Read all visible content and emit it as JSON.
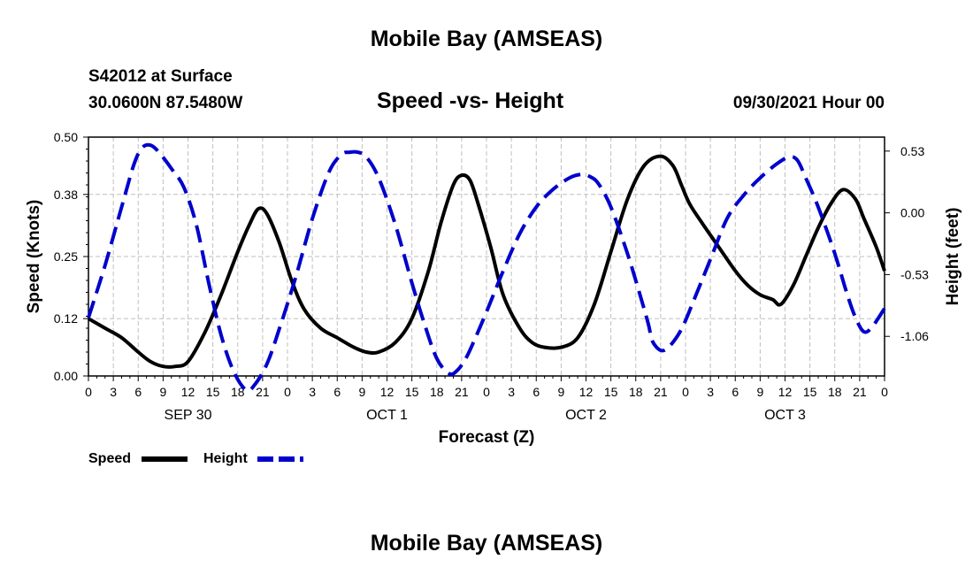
{
  "header": {
    "title": "Mobile Bay (AMSEAS)",
    "station": "S42012 at Surface",
    "coords": "30.0600N  87.5480W",
    "chart_title": "Speed -vs- Height",
    "run_time": "09/30/2021 Hour 00"
  },
  "footer": {
    "title": "Mobile Bay (AMSEAS)"
  },
  "legend": {
    "speed_label": "Speed",
    "height_label": "Height"
  },
  "colors": {
    "speed": "#000000",
    "height": "#0000cc",
    "grid": "#bfbfbf"
  },
  "chart_data": {
    "type": "line",
    "title": "Speed -vs- Height",
    "xlabel": "Forecast (Z)",
    "ylabel": "Speed (Knots)",
    "y2label": "Height (feet)",
    "x_ticks": [
      "0",
      "3",
      "6",
      "9",
      "12",
      "15",
      "18",
      "21",
      "0",
      "3",
      "6",
      "9",
      "12",
      "15",
      "18",
      "21",
      "0",
      "3",
      "6",
      "9",
      "12",
      "15",
      "18",
      "21",
      "0",
      "3",
      "6",
      "9",
      "12",
      "15",
      "18",
      "21",
      "0"
    ],
    "day_labels": [
      {
        "label": "SEP 30",
        "hour": 12
      },
      {
        "label": "OCT 1",
        "hour": 36
      },
      {
        "label": "OCT 2",
        "hour": 60
      },
      {
        "label": "OCT 3",
        "hour": 84
      }
    ],
    "xlim": [
      0,
      96
    ],
    "ylim": [
      0,
      0.5
    ],
    "y_ticks": [
      "0.00",
      "0.12",
      "0.25",
      "0.38",
      "0.50"
    ],
    "y2lim": [
      -1.4,
      0.65
    ],
    "y2_ticks": [
      "0.53",
      "0.00",
      "-0.53",
      "-1.06"
    ],
    "grid": true,
    "legend_position": "bottom-left",
    "series": [
      {
        "name": "Speed",
        "axis": "left",
        "style": "solid",
        "x": [
          0,
          2,
          4,
          6,
          7.5,
          9,
          10.5,
          12,
          14,
          16,
          18,
          19.5,
          20.5,
          21.5,
          23,
          24.5,
          26,
          28,
          30,
          32,
          33.5,
          35,
          37,
          39,
          41,
          42.5,
          44,
          45,
          46,
          47,
          48.5,
          50,
          52,
          53.5,
          55,
          57,
          59,
          61,
          63,
          65,
          67,
          69,
          70.5,
          71.5,
          72.5,
          74,
          76,
          78,
          79.5,
          81,
          82.5,
          83.5,
          85,
          86.5,
          88,
          89.5,
          91,
          92.5,
          93.5,
          95,
          96
        ],
        "values": [
          0.12,
          0.1,
          0.08,
          0.05,
          0.03,
          0.02,
          0.02,
          0.03,
          0.09,
          0.17,
          0.26,
          0.32,
          0.35,
          0.34,
          0.28,
          0.2,
          0.14,
          0.1,
          0.08,
          0.06,
          0.05,
          0.05,
          0.07,
          0.12,
          0.22,
          0.32,
          0.4,
          0.42,
          0.41,
          0.36,
          0.27,
          0.17,
          0.1,
          0.07,
          0.06,
          0.06,
          0.08,
          0.15,
          0.26,
          0.37,
          0.44,
          0.46,
          0.44,
          0.4,
          0.36,
          0.32,
          0.27,
          0.22,
          0.19,
          0.17,
          0.16,
          0.15,
          0.19,
          0.25,
          0.31,
          0.36,
          0.39,
          0.37,
          0.33,
          0.27,
          0.22
        ]
      },
      {
        "name": "Height",
        "axis": "right",
        "style": "dashed",
        "x": [
          0,
          2,
          4,
          5.5,
          6.5,
          7.5,
          8.5,
          10,
          11.5,
          13,
          14.5,
          16,
          17.5,
          19,
          20,
          21.5,
          23,
          25,
          27,
          29,
          30.5,
          31.5,
          32.5,
          33.5,
          35,
          37,
          39,
          40.5,
          42,
          43.5,
          44.5,
          45.5,
          46.5,
          48,
          50,
          52,
          54,
          56,
          58,
          59.5,
          60.5,
          61.5,
          63,
          65,
          66.5,
          67.5,
          68,
          69,
          70,
          71.5,
          73,
          75,
          77,
          79,
          81,
          83,
          84.5,
          85.5,
          86.5,
          88,
          90,
          91.5,
          92.5,
          93.5,
          94.5,
          96
        ],
        "values": [
          -0.9,
          -0.45,
          0.05,
          0.42,
          0.56,
          0.58,
          0.52,
          0.38,
          0.22,
          -0.1,
          -0.6,
          -1.05,
          -1.36,
          -1.52,
          -1.48,
          -1.3,
          -1.0,
          -0.55,
          -0.05,
          0.35,
          0.5,
          0.52,
          0.52,
          0.48,
          0.3,
          -0.1,
          -0.6,
          -0.95,
          -1.25,
          -1.38,
          -1.35,
          -1.25,
          -1.1,
          -0.85,
          -0.5,
          -0.18,
          0.05,
          0.2,
          0.3,
          0.33,
          0.31,
          0.25,
          0.05,
          -0.35,
          -0.7,
          -0.95,
          -1.1,
          -1.18,
          -1.15,
          -1.0,
          -0.75,
          -0.4,
          -0.05,
          0.15,
          0.3,
          0.42,
          0.48,
          0.45,
          0.3,
          0.05,
          -0.35,
          -0.7,
          -0.9,
          -1.02,
          -0.98,
          -0.82
        ]
      }
    ]
  }
}
